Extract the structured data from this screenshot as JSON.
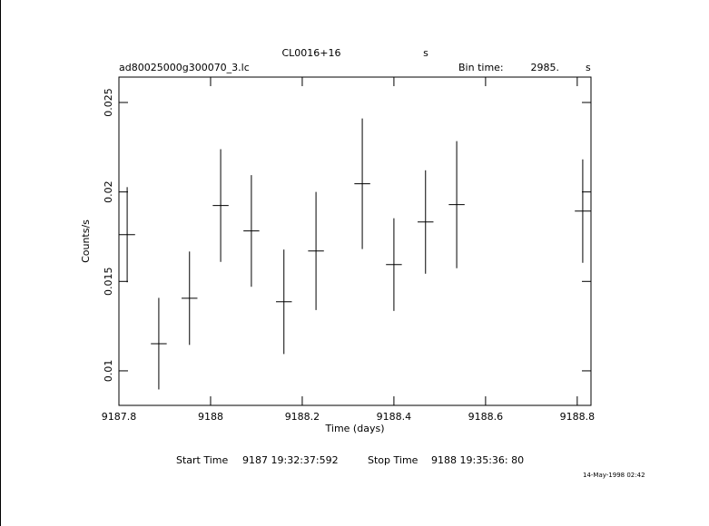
{
  "chart_data": {
    "type": "errorbar",
    "title": "CL0016+16",
    "title_suffix": "s",
    "subtitle": "ad80025000g300070_3.lc",
    "bin_time_label": "Bin time:",
    "bin_time": {
      "value": 2985,
      "label": "2985."
    },
    "bin_time_unit": "s",
    "x_label": "Time (days)",
    "y_label": "Counts/s",
    "xlim": [
      9187.8,
      9188.83
    ],
    "ylim": [
      0.00807,
      0.02642
    ],
    "xticks": [
      9187.8,
      9188,
      9188.2,
      9188.4,
      9188.6,
      9188.8
    ],
    "yticks": [
      0.01,
      0.015,
      0.02,
      0.025
    ],
    "color": "#000000",
    "x": [
      9187.818,
      9187.887,
      9187.954,
      9188.022,
      9188.089,
      9188.16,
      9188.23,
      9188.331,
      9188.4,
      9188.469,
      9188.537,
      9188.812
    ],
    "values": [
      0.01761,
      0.01152,
      0.01406,
      0.01924,
      0.01782,
      0.01386,
      0.0167,
      0.02046,
      0.01594,
      0.01832,
      0.01929,
      0.01893
    ],
    "errors": [
      0.00266,
      0.00256,
      0.00261,
      0.00315,
      0.00312,
      0.00292,
      0.0033,
      0.00365,
      0.00259,
      0.00289,
      0.00355,
      0.00289
    ],
    "start_label": "Start Time",
    "start_value": "9187 19:32:37:592",
    "stop_label": "Stop Time",
    "stop_value": "9188 19:35:36: 80",
    "timestamp": "14-May-1998 02:42"
  }
}
